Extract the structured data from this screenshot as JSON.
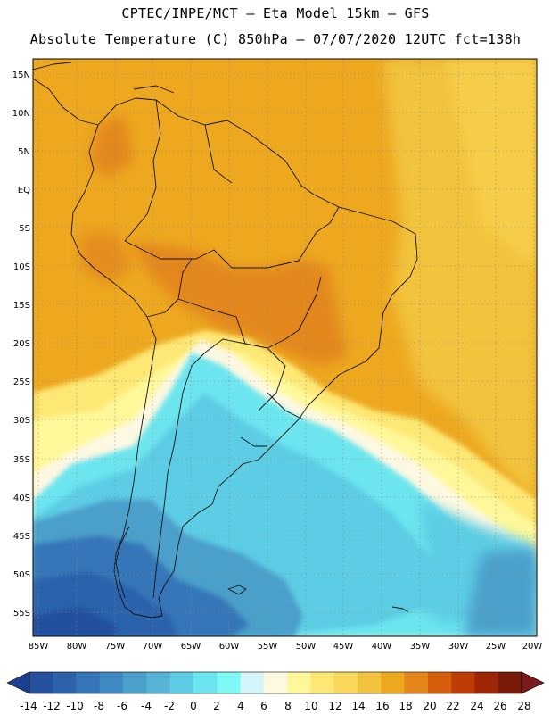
{
  "header": {
    "line1": "CPTEC/INPE/MCT –  Eta Model 15km – GFS",
    "line2": "Absolute Temperature (C) 850hPa – 07/07/2020 12UTC fct=138h"
  },
  "map": {
    "lat_labels": [
      "15N",
      "10N",
      "5N",
      "EQ",
      "5S",
      "10S",
      "15S",
      "20S",
      "25S",
      "30S",
      "35S",
      "40S",
      "45S",
      "50S",
      "55S"
    ],
    "lon_labels": [
      "85W",
      "80W",
      "75W",
      "70W",
      "65W",
      "60W",
      "55W",
      "50W",
      "45W",
      "40W",
      "35W",
      "30W",
      "25W",
      "20W"
    ]
  },
  "colorbar": {
    "labels": [
      "-14",
      "-12",
      "-10",
      "-8",
      "-6",
      "-4",
      "-2",
      "0",
      "2",
      "4",
      "6",
      "8",
      "10",
      "12",
      "14",
      "16",
      "18",
      "20",
      "22",
      "24",
      "26",
      "28"
    ],
    "colors": [
      "#1d3f8f",
      "#24509e",
      "#2c62ac",
      "#3676b8",
      "#3f8ac2",
      "#4b9fcb",
      "#57b4d6",
      "#5ccde4",
      "#6ce5ef",
      "#7ff8f8",
      "#d4f6fa",
      "#fdf8e2",
      "#fff89a",
      "#fde875",
      "#f9d75a",
      "#f2c33e",
      "#eda820",
      "#e3871a",
      "#d65e0c",
      "#be3d07",
      "#9e2607",
      "#7a1a09",
      "#7a1a1a"
    ]
  }
}
